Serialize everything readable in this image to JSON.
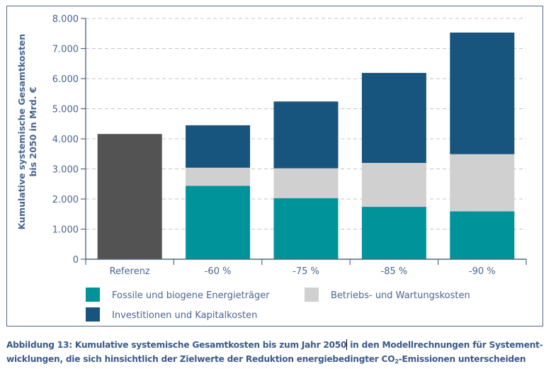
{
  "chart_data": {
    "type": "bar",
    "stacked": true,
    "title": "",
    "ylabel_lines": [
      "Kumulative systemische Gesamtkosten",
      "bis 2050 in Mrd. €"
    ],
    "xlabel": "",
    "ylim": [
      0,
      8000
    ],
    "yticks": [
      0,
      1000,
      2000,
      3000,
      4000,
      5000,
      6000,
      7000,
      8000
    ],
    "ytick_labels": [
      "0",
      "1.000",
      "2.000",
      "3.000",
      "4.000",
      "5.000",
      "6.000",
      "7.000",
      "8.000"
    ],
    "grid": "horizontal-dashed",
    "categories": [
      "Referenz",
      "-60 %",
      "-75 %",
      "-85 %",
      "-90 %"
    ],
    "reference_series": {
      "name": "Referenz",
      "color": "#535353",
      "values": [
        4160,
        0,
        0,
        0,
        0
      ]
    },
    "series": [
      {
        "name": "Fossile und biogene Energieträger",
        "color": "#00949a",
        "values": [
          0,
          2440,
          2030,
          1740,
          1590
        ]
      },
      {
        "name": "Betriebs- und Wartungskosten",
        "color": "#d0d0d0",
        "values": [
          0,
          600,
          990,
          1460,
          1900
        ]
      },
      {
        "name": "Investitionen und Kapitalkosten",
        "color": "#17557f",
        "values": [
          0,
          1410,
          2220,
          2990,
          4040
        ]
      }
    ],
    "totals": [
      4160,
      4450,
      5240,
      6190,
      7530
    ],
    "legend": {
      "placement": "bottom",
      "entries": [
        {
          "label": "Fossile und biogene Energieträger",
          "color": "#00949a"
        },
        {
          "label": "Betriebs- und Wartungskosten",
          "color": "#d0d0d0"
        },
        {
          "label": "Investitionen und Kapitalkosten",
          "color": "#17557f"
        }
      ]
    }
  },
  "caption": {
    "line1_before_cursor": "Abbildung 13: Kumulative systemische Gesamtkosten bis zum Jahr 2050",
    "line1_after_cursor": " in den Modellrechnungen für Systement-",
    "line2_before_sub": "wicklungen, die sich hinsichtlich der Zielwerte der Reduktion energiebedingter CO",
    "line2_sub": "2",
    "line2_after_sub": "-Emissionen unterscheiden"
  }
}
